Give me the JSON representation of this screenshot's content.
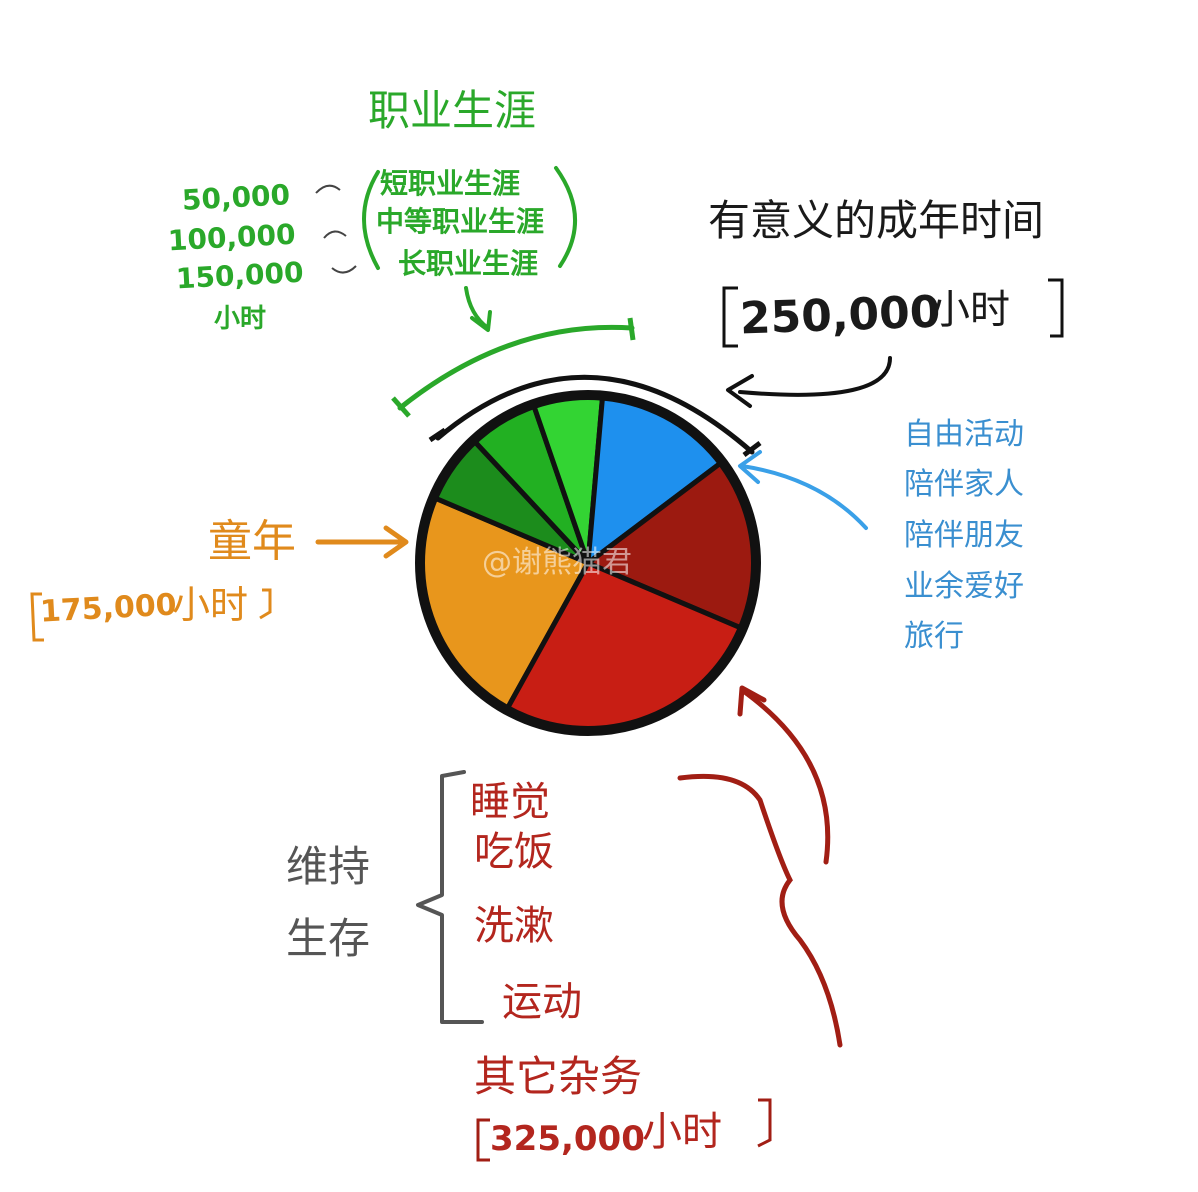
{
  "career": {
    "title": "职业生涯",
    "hours_values": [
      "50,000",
      "100,000",
      "150,000"
    ],
    "hours_unit": "小时",
    "items": [
      "短职业生涯",
      "中等职业生涯",
      "长职业生涯"
    ]
  },
  "meaningful": {
    "title": "有意义的成年时间",
    "hours": "250,000",
    "unit": "小时",
    "items": [
      "自由活动",
      "陪伴家人",
      "陪伴朋友",
      "业余爱好",
      "旅行"
    ]
  },
  "childhood": {
    "title": "童年",
    "hours": "175,000",
    "unit": "小时"
  },
  "survival": {
    "group_label": [
      "维持",
      "生存"
    ],
    "items": [
      "睡觉",
      "吃饭",
      "洗漱",
      "运动"
    ],
    "other": "其它杂务",
    "hours": "325,000",
    "unit": "小时"
  },
  "watermark": "@谢熊猫君",
  "colors": {
    "career": "#2aa82a",
    "childhood": "#e08a1c",
    "meaningful": "#3a8fd0",
    "survival": "#b3261e",
    "survival_dark": "#8e1a12",
    "text_dark": "#1a1a1a",
    "text_grey": "#555555"
  },
  "chart_data": {
    "type": "pie",
    "slices": [
      {
        "value": 175000,
        "color": "#e8961c"
      },
      {
        "value": 50000,
        "color": "#1c8c1c"
      },
      {
        "value": 50000,
        "color": "#22b022"
      },
      {
        "value": 50000,
        "color": "#33d433"
      },
      {
        "value": 100000,
        "color": "#1e90ee"
      },
      {
        "value": 125000,
        "color": "#9c1a10"
      },
      {
        "value": 200000,
        "color": "#c81e14"
      }
    ]
  }
}
